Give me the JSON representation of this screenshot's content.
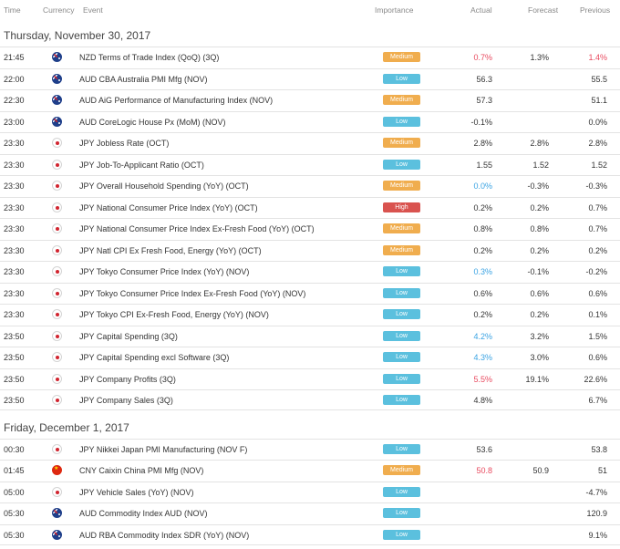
{
  "columns": {
    "time": "Time",
    "currency": "Currency",
    "event": "Event",
    "importance": "Importance",
    "actual": "Actual",
    "forecast": "Forecast",
    "previous": "Previous"
  },
  "days": [
    {
      "label": "Thursday, November 30, 2017",
      "rows": [
        {
          "time": "21:45",
          "flag": "nz",
          "flag_icon": "new-zealand-flag-icon",
          "event": "NZD Terms of Trade Index (QoQ) (3Q)",
          "importance": "Medium",
          "actual": "0.7%",
          "actual_color": "red",
          "forecast": "1.3%",
          "previous": "1.4%",
          "previous_color": "red"
        },
        {
          "time": "22:00",
          "flag": "au",
          "flag_icon": "australia-flag-icon",
          "event": "AUD CBA Australia PMI Mfg (NOV)",
          "importance": "Low",
          "actual": "56.3",
          "actual_color": "",
          "forecast": "",
          "previous": "55.5",
          "previous_color": ""
        },
        {
          "time": "22:30",
          "flag": "au",
          "flag_icon": "australia-flag-icon",
          "event": "AUD AiG Performance of Manufacturing Index (NOV)",
          "importance": "Medium",
          "actual": "57.3",
          "actual_color": "",
          "forecast": "",
          "previous": "51.1",
          "previous_color": ""
        },
        {
          "time": "23:00",
          "flag": "au",
          "flag_icon": "australia-flag-icon",
          "event": "AUD CoreLogic House Px (MoM) (NOV)",
          "importance": "Low",
          "actual": "-0.1%",
          "actual_color": "",
          "forecast": "",
          "previous": "0.0%",
          "previous_color": ""
        },
        {
          "time": "23:30",
          "flag": "jp",
          "flag_icon": "japan-flag-icon",
          "event": "JPY Jobless Rate (OCT)",
          "importance": "Medium",
          "actual": "2.8%",
          "actual_color": "",
          "forecast": "2.8%",
          "previous": "2.8%",
          "previous_color": ""
        },
        {
          "time": "23:30",
          "flag": "jp",
          "flag_icon": "japan-flag-icon",
          "event": "JPY Job-To-Applicant Ratio (OCT)",
          "importance": "Low",
          "actual": "1.55",
          "actual_color": "",
          "forecast": "1.52",
          "previous": "1.52",
          "previous_color": ""
        },
        {
          "time": "23:30",
          "flag": "jp",
          "flag_icon": "japan-flag-icon",
          "event": "JPY Overall Household Spending (YoY) (OCT)",
          "importance": "Medium",
          "actual": "0.0%",
          "actual_color": "blue",
          "forecast": "-0.3%",
          "previous": "-0.3%",
          "previous_color": ""
        },
        {
          "time": "23:30",
          "flag": "jp",
          "flag_icon": "japan-flag-icon",
          "event": "JPY National Consumer Price Index (YoY) (OCT)",
          "importance": "High",
          "actual": "0.2%",
          "actual_color": "",
          "forecast": "0.2%",
          "previous": "0.7%",
          "previous_color": ""
        },
        {
          "time": "23:30",
          "flag": "jp",
          "flag_icon": "japan-flag-icon",
          "event": "JPY National Consumer Price Index Ex-Fresh Food (YoY) (OCT)",
          "importance": "Medium",
          "actual": "0.8%",
          "actual_color": "",
          "forecast": "0.8%",
          "previous": "0.7%",
          "previous_color": ""
        },
        {
          "time": "23:30",
          "flag": "jp",
          "flag_icon": "japan-flag-icon",
          "event": "JPY Natl CPI Ex Fresh Food, Energy (YoY) (OCT)",
          "importance": "Medium",
          "actual": "0.2%",
          "actual_color": "",
          "forecast": "0.2%",
          "previous": "0.2%",
          "previous_color": ""
        },
        {
          "time": "23:30",
          "flag": "jp",
          "flag_icon": "japan-flag-icon",
          "event": "JPY Tokyo Consumer Price Index (YoY) (NOV)",
          "importance": "Low",
          "actual": "0.3%",
          "actual_color": "blue",
          "forecast": "-0.1%",
          "previous": "-0.2%",
          "previous_color": ""
        },
        {
          "time": "23:30",
          "flag": "jp",
          "flag_icon": "japan-flag-icon",
          "event": "JPY Tokyo Consumer Price Index Ex-Fresh Food (YoY) (NOV)",
          "importance": "Low",
          "actual": "0.6%",
          "actual_color": "",
          "forecast": "0.6%",
          "previous": "0.6%",
          "previous_color": ""
        },
        {
          "time": "23:30",
          "flag": "jp",
          "flag_icon": "japan-flag-icon",
          "event": "JPY Tokyo CPI Ex-Fresh Food, Energy (YoY) (NOV)",
          "importance": "Low",
          "actual": "0.2%",
          "actual_color": "",
          "forecast": "0.2%",
          "previous": "0.1%",
          "previous_color": ""
        },
        {
          "time": "23:50",
          "flag": "jp",
          "flag_icon": "japan-flag-icon",
          "event": "JPY Capital Spending (3Q)",
          "importance": "Low",
          "actual": "4.2%",
          "actual_color": "blue",
          "forecast": "3.2%",
          "previous": "1.5%",
          "previous_color": ""
        },
        {
          "time": "23:50",
          "flag": "jp",
          "flag_icon": "japan-flag-icon",
          "event": "JPY Capital Spending excl Software (3Q)",
          "importance": "Low",
          "actual": "4.3%",
          "actual_color": "blue",
          "forecast": "3.0%",
          "previous": "0.6%",
          "previous_color": ""
        },
        {
          "time": "23:50",
          "flag": "jp",
          "flag_icon": "japan-flag-icon",
          "event": "JPY Company Profits (3Q)",
          "importance": "Low",
          "actual": "5.5%",
          "actual_color": "red",
          "forecast": "19.1%",
          "previous": "22.6%",
          "previous_color": ""
        },
        {
          "time": "23:50",
          "flag": "jp",
          "flag_icon": "japan-flag-icon",
          "event": "JPY Company Sales (3Q)",
          "importance": "Low",
          "actual": "4.8%",
          "actual_color": "",
          "forecast": "",
          "previous": "6.7%",
          "previous_color": ""
        }
      ]
    },
    {
      "label": "Friday, December 1, 2017",
      "rows": [
        {
          "time": "00:30",
          "flag": "jp",
          "flag_icon": "japan-flag-icon",
          "event": "JPY Nikkei Japan PMI Manufacturing (NOV F)",
          "importance": "Low",
          "actual": "53.6",
          "actual_color": "",
          "forecast": "",
          "previous": "53.8",
          "previous_color": ""
        },
        {
          "time": "01:45",
          "flag": "cn",
          "flag_icon": "china-flag-icon",
          "event": "CNY Caixin China PMI Mfg (NOV)",
          "importance": "Medium",
          "actual": "50.8",
          "actual_color": "red",
          "forecast": "50.9",
          "previous": "51",
          "previous_color": ""
        },
        {
          "time": "05:00",
          "flag": "jp",
          "flag_icon": "japan-flag-icon",
          "event": "JPY Vehicle Sales (YoY) (NOV)",
          "importance": "Low",
          "actual": "",
          "actual_color": "",
          "forecast": "",
          "previous": "-4.7%",
          "previous_color": ""
        },
        {
          "time": "05:30",
          "flag": "au",
          "flag_icon": "australia-flag-icon",
          "event": "AUD Commodity Index AUD (NOV)",
          "importance": "Low",
          "actual": "",
          "actual_color": "",
          "forecast": "",
          "previous": "120.9",
          "previous_color": ""
        },
        {
          "time": "05:30",
          "flag": "au",
          "flag_icon": "australia-flag-icon",
          "event": "AUD RBA Commodity Index SDR (YoY) (NOV)",
          "importance": "Low",
          "actual": "",
          "actual_color": "",
          "forecast": "",
          "previous": "9.1%",
          "previous_color": ""
        }
      ]
    }
  ]
}
